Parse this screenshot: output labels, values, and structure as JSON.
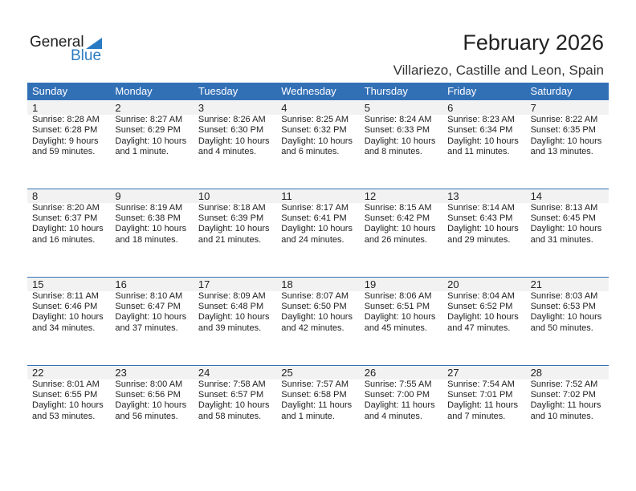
{
  "logo": {
    "general": "General",
    "blue": "Blue"
  },
  "title": "February 2026",
  "location": "Villariezo, Castille and Leon, Spain",
  "colors": {
    "header": "#3270b6",
    "date_bar": "#f2f2f2",
    "logo_blue": "#2a7bc4"
  },
  "weekdays": [
    "Sunday",
    "Monday",
    "Tuesday",
    "Wednesday",
    "Thursday",
    "Friday",
    "Saturday"
  ],
  "weeks": [
    [
      {
        "day": "1",
        "sunrise": "Sunrise: 8:28 AM",
        "sunset": "Sunset: 6:28 PM",
        "daylight": "Daylight: 9 hours",
        "minutes": "and 59 minutes."
      },
      {
        "day": "2",
        "sunrise": "Sunrise: 8:27 AM",
        "sunset": "Sunset: 6:29 PM",
        "daylight": "Daylight: 10 hours",
        "minutes": "and 1 minute."
      },
      {
        "day": "3",
        "sunrise": "Sunrise: 8:26 AM",
        "sunset": "Sunset: 6:30 PM",
        "daylight": "Daylight: 10 hours",
        "minutes": "and 4 minutes."
      },
      {
        "day": "4",
        "sunrise": "Sunrise: 8:25 AM",
        "sunset": "Sunset: 6:32 PM",
        "daylight": "Daylight: 10 hours",
        "minutes": "and 6 minutes."
      },
      {
        "day": "5",
        "sunrise": "Sunrise: 8:24 AM",
        "sunset": "Sunset: 6:33 PM",
        "daylight": "Daylight: 10 hours",
        "minutes": "and 8 minutes."
      },
      {
        "day": "6",
        "sunrise": "Sunrise: 8:23 AM",
        "sunset": "Sunset: 6:34 PM",
        "daylight": "Daylight: 10 hours",
        "minutes": "and 11 minutes."
      },
      {
        "day": "7",
        "sunrise": "Sunrise: 8:22 AM",
        "sunset": "Sunset: 6:35 PM",
        "daylight": "Daylight: 10 hours",
        "minutes": "and 13 minutes."
      }
    ],
    [
      {
        "day": "8",
        "sunrise": "Sunrise: 8:20 AM",
        "sunset": "Sunset: 6:37 PM",
        "daylight": "Daylight: 10 hours",
        "minutes": "and 16 minutes."
      },
      {
        "day": "9",
        "sunrise": "Sunrise: 8:19 AM",
        "sunset": "Sunset: 6:38 PM",
        "daylight": "Daylight: 10 hours",
        "minutes": "and 18 minutes."
      },
      {
        "day": "10",
        "sunrise": "Sunrise: 8:18 AM",
        "sunset": "Sunset: 6:39 PM",
        "daylight": "Daylight: 10 hours",
        "minutes": "and 21 minutes."
      },
      {
        "day": "11",
        "sunrise": "Sunrise: 8:17 AM",
        "sunset": "Sunset: 6:41 PM",
        "daylight": "Daylight: 10 hours",
        "minutes": "and 24 minutes."
      },
      {
        "day": "12",
        "sunrise": "Sunrise: 8:15 AM",
        "sunset": "Sunset: 6:42 PM",
        "daylight": "Daylight: 10 hours",
        "minutes": "and 26 minutes."
      },
      {
        "day": "13",
        "sunrise": "Sunrise: 8:14 AM",
        "sunset": "Sunset: 6:43 PM",
        "daylight": "Daylight: 10 hours",
        "minutes": "and 29 minutes."
      },
      {
        "day": "14",
        "sunrise": "Sunrise: 8:13 AM",
        "sunset": "Sunset: 6:45 PM",
        "daylight": "Daylight: 10 hours",
        "minutes": "and 31 minutes."
      }
    ],
    [
      {
        "day": "15",
        "sunrise": "Sunrise: 8:11 AM",
        "sunset": "Sunset: 6:46 PM",
        "daylight": "Daylight: 10 hours",
        "minutes": "and 34 minutes."
      },
      {
        "day": "16",
        "sunrise": "Sunrise: 8:10 AM",
        "sunset": "Sunset: 6:47 PM",
        "daylight": "Daylight: 10 hours",
        "minutes": "and 37 minutes."
      },
      {
        "day": "17",
        "sunrise": "Sunrise: 8:09 AM",
        "sunset": "Sunset: 6:48 PM",
        "daylight": "Daylight: 10 hours",
        "minutes": "and 39 minutes."
      },
      {
        "day": "18",
        "sunrise": "Sunrise: 8:07 AM",
        "sunset": "Sunset: 6:50 PM",
        "daylight": "Daylight: 10 hours",
        "minutes": "and 42 minutes."
      },
      {
        "day": "19",
        "sunrise": "Sunrise: 8:06 AM",
        "sunset": "Sunset: 6:51 PM",
        "daylight": "Daylight: 10 hours",
        "minutes": "and 45 minutes."
      },
      {
        "day": "20",
        "sunrise": "Sunrise: 8:04 AM",
        "sunset": "Sunset: 6:52 PM",
        "daylight": "Daylight: 10 hours",
        "minutes": "and 47 minutes."
      },
      {
        "day": "21",
        "sunrise": "Sunrise: 8:03 AM",
        "sunset": "Sunset: 6:53 PM",
        "daylight": "Daylight: 10 hours",
        "minutes": "and 50 minutes."
      }
    ],
    [
      {
        "day": "22",
        "sunrise": "Sunrise: 8:01 AM",
        "sunset": "Sunset: 6:55 PM",
        "daylight": "Daylight: 10 hours",
        "minutes": "and 53 minutes."
      },
      {
        "day": "23",
        "sunrise": "Sunrise: 8:00 AM",
        "sunset": "Sunset: 6:56 PM",
        "daylight": "Daylight: 10 hours",
        "minutes": "and 56 minutes."
      },
      {
        "day": "24",
        "sunrise": "Sunrise: 7:58 AM",
        "sunset": "Sunset: 6:57 PM",
        "daylight": "Daylight: 10 hours",
        "minutes": "and 58 minutes."
      },
      {
        "day": "25",
        "sunrise": "Sunrise: 7:57 AM",
        "sunset": "Sunset: 6:58 PM",
        "daylight": "Daylight: 11 hours",
        "minutes": "and 1 minute."
      },
      {
        "day": "26",
        "sunrise": "Sunrise: 7:55 AM",
        "sunset": "Sunset: 7:00 PM",
        "daylight": "Daylight: 11 hours",
        "minutes": "and 4 minutes."
      },
      {
        "day": "27",
        "sunrise": "Sunrise: 7:54 AM",
        "sunset": "Sunset: 7:01 PM",
        "daylight": "Daylight: 11 hours",
        "minutes": "and 7 minutes."
      },
      {
        "day": "28",
        "sunrise": "Sunrise: 7:52 AM",
        "sunset": "Sunset: 7:02 PM",
        "daylight": "Daylight: 11 hours",
        "minutes": "and 10 minutes."
      }
    ]
  ]
}
